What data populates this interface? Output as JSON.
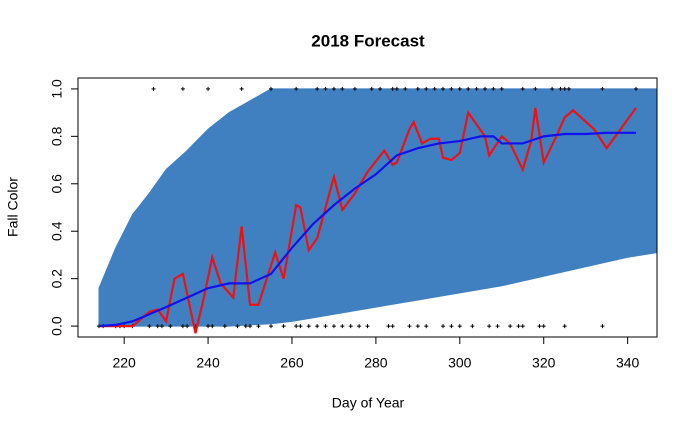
{
  "chart_data": {
    "type": "line",
    "title": "2018 Forecast",
    "xlabel": "Day of Year",
    "ylabel": "Fall Color",
    "xlim": [
      209,
      347
    ],
    "ylim": [
      -0.046,
      1.046
    ],
    "xticks": [
      220,
      240,
      260,
      280,
      300,
      320,
      340
    ],
    "yticks": [
      {
        "value": 0,
        "label": "0.0"
      },
      {
        "value": 0.2,
        "label": "0.2"
      },
      {
        "value": 0.4,
        "label": "0.4"
      },
      {
        "value": 0.6,
        "label": "0.6"
      },
      {
        "value": 0.8,
        "label": "0.8"
      },
      {
        "value": 1,
        "label": "1.0"
      }
    ],
    "band": {
      "color": "#4080c0",
      "x": [
        214,
        218,
        222,
        226,
        230,
        235,
        240,
        245,
        250,
        255,
        260,
        270,
        280,
        290,
        300,
        310,
        320,
        330,
        340,
        347
      ],
      "upper": [
        0.16,
        0.33,
        0.47,
        0.56,
        0.66,
        0.74,
        0.83,
        0.9,
        0.95,
        1,
        1,
        1,
        1,
        1,
        1,
        1,
        1,
        1,
        1,
        1
      ],
      "lower": [
        0,
        0,
        0,
        0,
        0,
        0,
        0,
        0,
        0.005,
        0.01,
        0.02,
        0.05,
        0.08,
        0.11,
        0.14,
        0.17,
        0.21,
        0.25,
        0.29,
        0.31
      ]
    },
    "series": [
      {
        "color": "#ee1111",
        "x": [
          214,
          218,
          222,
          224,
          226,
          228,
          230,
          232,
          234,
          237,
          239,
          241,
          243,
          246,
          248,
          250,
          252,
          256,
          258,
          261,
          262,
          264,
          266,
          270,
          272,
          275,
          278,
          282,
          284,
          285,
          288,
          289,
          291,
          293,
          295,
          296,
          298,
          300,
          302,
          306,
          307,
          310,
          312,
          315,
          317,
          318,
          320,
          323,
          325,
          327,
          332,
          335,
          342
        ],
        "values": [
          0,
          0,
          0,
          0.03,
          0.06,
          0.07,
          0.02,
          0.2,
          0.22,
          -0.03,
          0.12,
          0.29,
          0.18,
          0.12,
          0.42,
          0.09,
          0.09,
          0.31,
          0.2,
          0.51,
          0.5,
          0.32,
          0.37,
          0.63,
          0.49,
          0.56,
          0.65,
          0.74,
          0.68,
          0.69,
          0.83,
          0.86,
          0.77,
          0.79,
          0.79,
          0.71,
          0.7,
          0.73,
          0.9,
          0.8,
          0.72,
          0.8,
          0.77,
          0.66,
          0.78,
          0.92,
          0.69,
          0.8,
          0.88,
          0.91,
          0.83,
          0.75,
          0.92
        ]
      },
      {
        "color": "#1111ee",
        "x": [
          214,
          218,
          222,
          226,
          230,
          235,
          240,
          245,
          250,
          255,
          260,
          265,
          270,
          275,
          280,
          285,
          290,
          295,
          300,
          305,
          308,
          310,
          315,
          320,
          325,
          330,
          335,
          342
        ],
        "values": [
          0,
          0.005,
          0.02,
          0.05,
          0.08,
          0.12,
          0.16,
          0.18,
          0.18,
          0.22,
          0.33,
          0.43,
          0.51,
          0.58,
          0.64,
          0.72,
          0.75,
          0.77,
          0.78,
          0.8,
          0.8,
          0.77,
          0.77,
          0.8,
          0.81,
          0.81,
          0.815,
          0.815
        ]
      }
    ],
    "points": {
      "color": "#000000",
      "x": [
        227,
        234,
        240,
        248,
        255,
        261,
        266,
        268,
        270,
        272,
        275,
        279,
        281,
        284,
        285,
        287,
        290,
        292,
        294,
        296,
        298,
        300,
        302,
        304,
        306,
        308,
        310,
        315,
        318,
        322,
        324,
        325,
        326,
        334,
        342,
        214,
        215,
        218,
        219,
        220,
        222,
        226,
        228,
        229,
        231,
        234,
        235,
        237,
        240,
        241,
        244,
        247,
        249,
        250,
        252,
        255,
        258,
        261,
        262,
        264,
        266,
        268,
        270,
        272,
        274,
        276,
        278,
        283,
        284,
        288,
        290,
        292,
        296,
        298,
        300,
        303,
        307,
        309,
        312,
        314,
        315,
        319,
        320,
        325,
        334
      ],
      "values": [
        1,
        1,
        1,
        1,
        1,
        1,
        1,
        1,
        1,
        1,
        1,
        1,
        1,
        1,
        1,
        1,
        1,
        1,
        1,
        1,
        1,
        1,
        1,
        1,
        1,
        1,
        1,
        1,
        1,
        1,
        1,
        1,
        1,
        1,
        1,
        0,
        0,
        0,
        0,
        0,
        0,
        0,
        0,
        0,
        0,
        0,
        0,
        0,
        0,
        0,
        0,
        0,
        0,
        0,
        0,
        0,
        0,
        0,
        0,
        0,
        0,
        0,
        0,
        0,
        0,
        0,
        0,
        0,
        0,
        0,
        0,
        0,
        0,
        0,
        0,
        0,
        0,
        0,
        0,
        0,
        0,
        0,
        0,
        0,
        0
      ]
    }
  }
}
